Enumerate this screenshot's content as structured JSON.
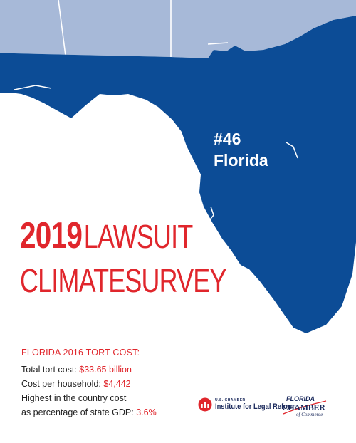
{
  "map": {
    "rank": "#46",
    "state": "Florida",
    "colors": {
      "highlight": "#0c4c96",
      "neighbor": "#a7b9d8",
      "background": "#ffffff"
    }
  },
  "headline": {
    "year": "2019",
    "word1": "LAWSUIT",
    "word2": "CLIMATE",
    "word3": "SURVEY",
    "color": "#e0262c"
  },
  "stats": {
    "heading": "FLORIDA 2016 TORT COST:",
    "total_label": "Total tort cost: ",
    "total_value": "$33.65 billion",
    "household_label": "Cost per household: ",
    "household_value": "$4,442",
    "highest_line1": "Highest in the country cost",
    "highest_line2": "as percentage of state GDP: ",
    "gdp_value": "3.6%"
  },
  "logos": {
    "ilr_small": "U.S. CHAMBER",
    "ilr_big": "Institute for Legal Reform",
    "fcc_line1": "FLORIDA",
    "fcc_line2": "CHAMBER",
    "fcc_line3": "of Commerce"
  }
}
